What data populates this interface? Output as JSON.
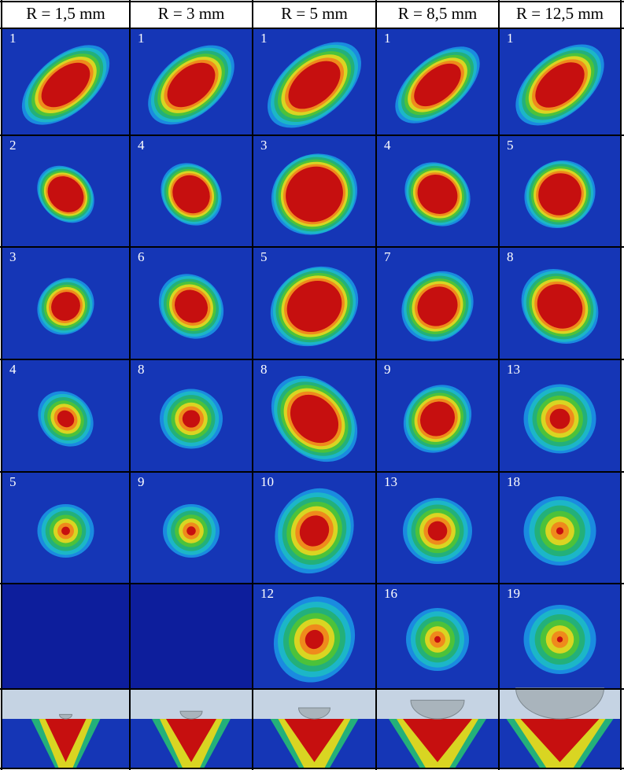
{
  "columns": [
    "R = 1,5 mm",
    "R = 3 mm",
    "R = 5 mm",
    "R = 8,5 mm",
    "R = 12,5 mm"
  ],
  "rows": [
    [
      "1",
      "1",
      "1",
      "1",
      "1"
    ],
    [
      "2",
      "4",
      "3",
      "4",
      "5"
    ],
    [
      "3",
      "6",
      "5",
      "7",
      "8"
    ],
    [
      "4",
      "8",
      "8",
      "9",
      "13"
    ],
    [
      "5",
      "9",
      "10",
      "13",
      "18"
    ],
    [
      null,
      null,
      "12",
      "16",
      "19"
    ]
  ]
}
